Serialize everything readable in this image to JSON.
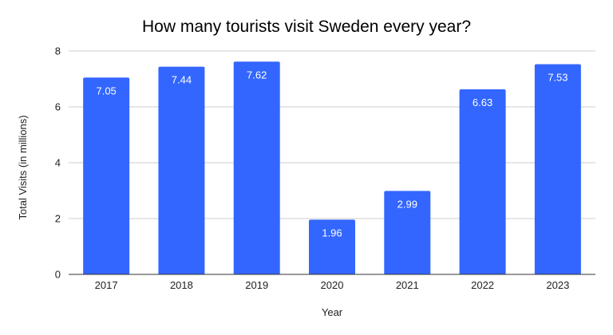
{
  "chart_data": {
    "type": "bar",
    "title": "How many tourists visit Sweden every year?",
    "xlabel": "Year",
    "ylabel": "Total Visits (in millions)",
    "categories": [
      "2017",
      "2018",
      "2019",
      "2020",
      "2021",
      "2022",
      "2023"
    ],
    "values": [
      7.05,
      7.44,
      7.62,
      1.96,
      2.99,
      6.63,
      7.53
    ],
    "data_labels": [
      "7.05",
      "7.44",
      "7.62",
      "1.96",
      "2.99",
      "6.63",
      "7.53"
    ],
    "ylim": [
      0,
      8
    ],
    "yticks": [
      0,
      2,
      4,
      6,
      8
    ],
    "ytick_labels": [
      "0",
      "2",
      "4",
      "6",
      "8"
    ],
    "grid": true,
    "legend": "none",
    "bar_color": "#3366ff",
    "grid_color": "#cccccc",
    "axis_color": "#333333"
  }
}
